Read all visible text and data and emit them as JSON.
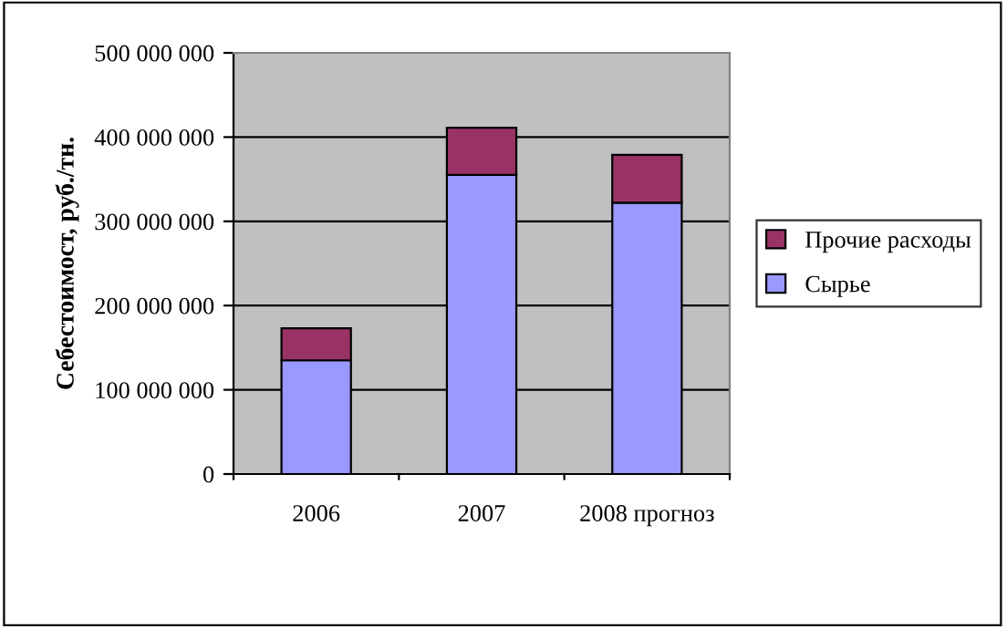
{
  "chart_data": {
    "type": "bar",
    "stacked": true,
    "ylabel": "Себестоимост, руб./тн.",
    "categories": [
      "2006",
      "2007",
      "2008 прогноз"
    ],
    "series": [
      {
        "name": "Сырье",
        "color": "#9999ff",
        "values": [
          135000000,
          355000000,
          322000000
        ]
      },
      {
        "name": "Прочие расходы",
        "color": "#993366",
        "values": [
          38000000,
          56000000,
          57000000
        ]
      }
    ],
    "ylim": [
      0,
      500000000
    ],
    "yticks": [
      {
        "value": 0,
        "label": "0"
      },
      {
        "value": 100000000,
        "label": "100 000 000"
      },
      {
        "value": 200000000,
        "label": "200 000 000"
      },
      {
        "value": 300000000,
        "label": "300 000 000"
      },
      {
        "value": 400000000,
        "label": "400 000 000"
      },
      {
        "value": 500000000,
        "label": "500 000 000"
      }
    ],
    "grid": "y",
    "legend": "right"
  }
}
